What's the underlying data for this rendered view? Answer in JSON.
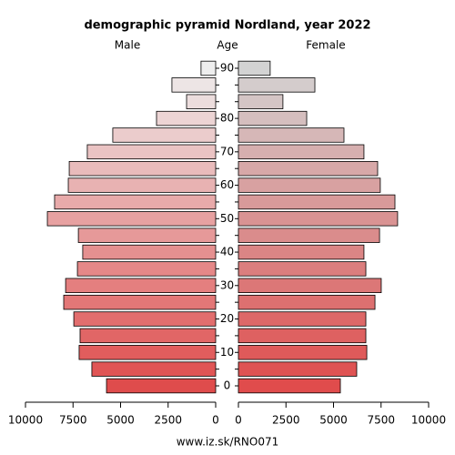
{
  "chart_data": {
    "type": "pyramid",
    "title": "demographic pyramid Nordland, year 2022",
    "left_label": "Male",
    "center_label": "Age",
    "right_label": "Female",
    "categories": [
      "0",
      null,
      "10",
      null,
      "20",
      null,
      "30",
      null,
      "40",
      null,
      "50",
      null,
      "60",
      null,
      "70",
      null,
      "80",
      null,
      null,
      "90"
    ],
    "series": [
      {
        "name": "Male",
        "side": "left",
        "gradient": [
          "#df4c4c",
          "#eeeeee"
        ],
        "values": [
          5740,
          6510,
          7180,
          7130,
          7460,
          7990,
          7890,
          7270,
          6990,
          7220,
          8850,
          8470,
          7750,
          7700,
          6750,
          5410,
          3110,
          1530,
          2300,
          770
        ]
      },
      {
        "name": "Female",
        "side": "right",
        "gradient": [
          "#e04c4c",
          "#d3d3d3"
        ],
        "values": [
          5360,
          6220,
          6750,
          6700,
          6700,
          7180,
          7510,
          6700,
          6600,
          7420,
          8370,
          8230,
          7460,
          7320,
          6600,
          5550,
          3590,
          2340,
          4020,
          1670
        ]
      }
    ],
    "xlim": [
      0,
      10000
    ],
    "xticks": [
      0,
      2500,
      5000,
      7500,
      10000
    ],
    "footer": "www.iz.sk/RNO071"
  }
}
